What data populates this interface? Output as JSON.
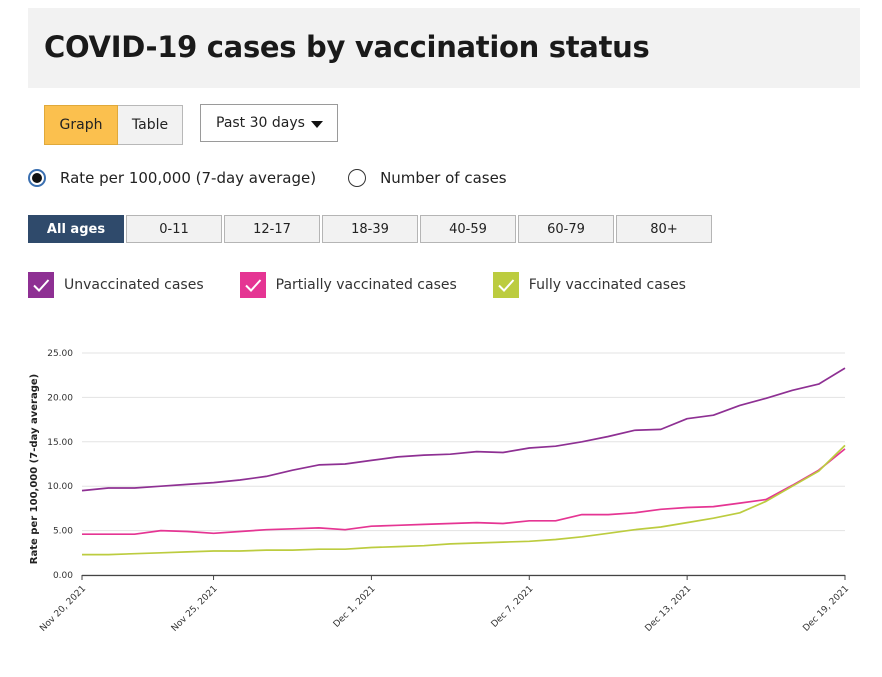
{
  "header": {
    "title": "COVID-19 cases by vaccination status"
  },
  "view_toggle": {
    "graph_label": "Graph",
    "table_label": "Table",
    "active": "graph"
  },
  "range_select": {
    "value": "Past 30 days"
  },
  "measure": {
    "options": [
      "Rate per 100,000 (7-day average)",
      "Number of cases"
    ],
    "selected": 0
  },
  "age_groups": {
    "items": [
      "All ages",
      "0-11",
      "12-17",
      "18-39",
      "40-59",
      "60-79",
      "80+"
    ],
    "selected": 0
  },
  "legend": [
    {
      "label": "Unvaccinated cases",
      "color": "#8e3093",
      "icon": "check-icon"
    },
    {
      "label": "Partially vaccinated cases",
      "color": "#e53593",
      "icon": "check-icon"
    },
    {
      "label": "Fully vaccinated cases",
      "color": "#bccc3f",
      "icon": "check-icon"
    }
  ],
  "chart_data": {
    "type": "line",
    "ylabel": "Rate per 100,000 (7-day average)",
    "xlabel": "",
    "ylim": [
      0,
      25
    ],
    "yticks": [
      "0.00",
      "5.00",
      "10.00",
      "15.00",
      "20.00",
      "25.00"
    ],
    "ytick_values": [
      0,
      5,
      10,
      15,
      20,
      25
    ],
    "x": [
      "2021-11-20",
      "2021-11-21",
      "2021-11-22",
      "2021-11-23",
      "2021-11-24",
      "2021-11-25",
      "2021-11-26",
      "2021-11-27",
      "2021-11-28",
      "2021-11-29",
      "2021-11-30",
      "2021-12-01",
      "2021-12-02",
      "2021-12-03",
      "2021-12-04",
      "2021-12-05",
      "2021-12-06",
      "2021-12-07",
      "2021-12-08",
      "2021-12-09",
      "2021-12-10",
      "2021-12-11",
      "2021-12-12",
      "2021-12-13",
      "2021-12-14",
      "2021-12-15",
      "2021-12-16",
      "2021-12-17",
      "2021-12-18",
      "2021-12-19"
    ],
    "xticks": [
      {
        "x": "2021-11-20",
        "label": "Nov 20, 2021"
      },
      {
        "x": "2021-11-25",
        "label": "Nov 25, 2021"
      },
      {
        "x": "2021-12-01",
        "label": "Dec 1, 2021"
      },
      {
        "x": "2021-12-07",
        "label": "Dec 7, 2021"
      },
      {
        "x": "2021-12-13",
        "label": "Dec 13, 2021"
      },
      {
        "x": "2021-12-19",
        "label": "Dec 19, 2021"
      }
    ],
    "grid": true,
    "legend_position": "top-left",
    "series": [
      {
        "name": "Unvaccinated cases",
        "color": "#8e3093",
        "values": [
          9.5,
          9.8,
          9.8,
          10.0,
          10.2,
          10.4,
          10.7,
          11.1,
          11.8,
          12.4,
          12.5,
          12.9,
          13.3,
          13.5,
          13.6,
          13.9,
          13.8,
          14.3,
          14.5,
          15.0,
          15.6,
          16.3,
          16.4,
          17.6,
          18.0,
          19.1,
          19.9,
          20.8,
          21.5,
          23.3
        ]
      },
      {
        "name": "Partially vaccinated cases",
        "color": "#e53593",
        "values": [
          4.6,
          4.6,
          4.6,
          5.0,
          4.9,
          4.7,
          4.9,
          5.1,
          5.2,
          5.3,
          5.1,
          5.5,
          5.6,
          5.7,
          5.8,
          5.9,
          5.8,
          6.1,
          6.1,
          6.8,
          6.8,
          7.0,
          7.4,
          7.6,
          7.7,
          8.1,
          8.5,
          10.1,
          11.8,
          14.2
        ]
      },
      {
        "name": "Fully vaccinated cases",
        "color": "#bccc3f",
        "values": [
          2.3,
          2.3,
          2.4,
          2.5,
          2.6,
          2.7,
          2.7,
          2.8,
          2.8,
          2.9,
          2.9,
          3.1,
          3.2,
          3.3,
          3.5,
          3.6,
          3.7,
          3.8,
          4.0,
          4.3,
          4.7,
          5.1,
          5.4,
          5.9,
          6.4,
          7.0,
          8.3,
          10.0,
          11.7,
          14.6
        ]
      }
    ]
  }
}
